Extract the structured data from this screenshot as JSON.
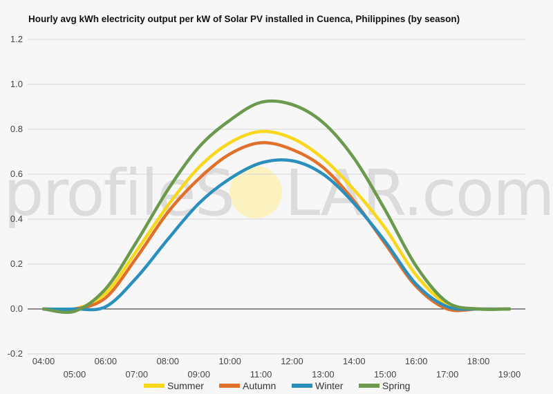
{
  "watermark": {
    "text_left": "profileS",
    "text_right": "LAR.com",
    "sun_color": "#fbf2c0"
  },
  "chart_data": {
    "type": "line",
    "title": "Hourly avg kWh electricity output per kW of Solar PV installed in Cuenca, Philippines (by season)",
    "xlabel": "",
    "ylabel": "",
    "ylim": [
      -0.2,
      1.2
    ],
    "yticks": [
      "-0.2",
      "0.0",
      "0.2",
      "0.4",
      "0.6",
      "0.8",
      "1.0",
      "1.2"
    ],
    "ytick_values": [
      -0.2,
      0.0,
      0.2,
      0.4,
      0.6,
      0.8,
      1.0,
      1.2
    ],
    "categories": [
      "04:00",
      "05:00",
      "06:00",
      "07:00",
      "08:00",
      "09:00",
      "10:00",
      "11:00",
      "12:00",
      "13:00",
      "14:00",
      "15:00",
      "16:00",
      "17:00",
      "18:00",
      "19:00"
    ],
    "grid": true,
    "legend_position": "bottom",
    "series": [
      {
        "name": "Summer",
        "color": "#f9d71c",
        "values": [
          0.0,
          0.0,
          0.07,
          0.26,
          0.46,
          0.63,
          0.74,
          0.79,
          0.76,
          0.67,
          0.53,
          0.36,
          0.15,
          0.02,
          0.0,
          0.0
        ]
      },
      {
        "name": "Autumn",
        "color": "#e0702a",
        "values": [
          0.0,
          0.0,
          0.05,
          0.23,
          0.43,
          0.58,
          0.69,
          0.74,
          0.71,
          0.63,
          0.48,
          0.29,
          0.1,
          0.0,
          0.0,
          0.0
        ]
      },
      {
        "name": "Winter",
        "color": "#2a8fbd",
        "values": [
          0.0,
          0.0,
          0.01,
          0.14,
          0.31,
          0.47,
          0.58,
          0.65,
          0.66,
          0.6,
          0.47,
          0.3,
          0.11,
          0.01,
          0.0,
          0.0
        ]
      },
      {
        "name": "Spring",
        "color": "#6b9a4e",
        "values": [
          0.0,
          -0.01,
          0.09,
          0.3,
          0.53,
          0.72,
          0.84,
          0.92,
          0.91,
          0.83,
          0.67,
          0.44,
          0.19,
          0.03,
          0.0,
          0.0
        ]
      }
    ]
  }
}
